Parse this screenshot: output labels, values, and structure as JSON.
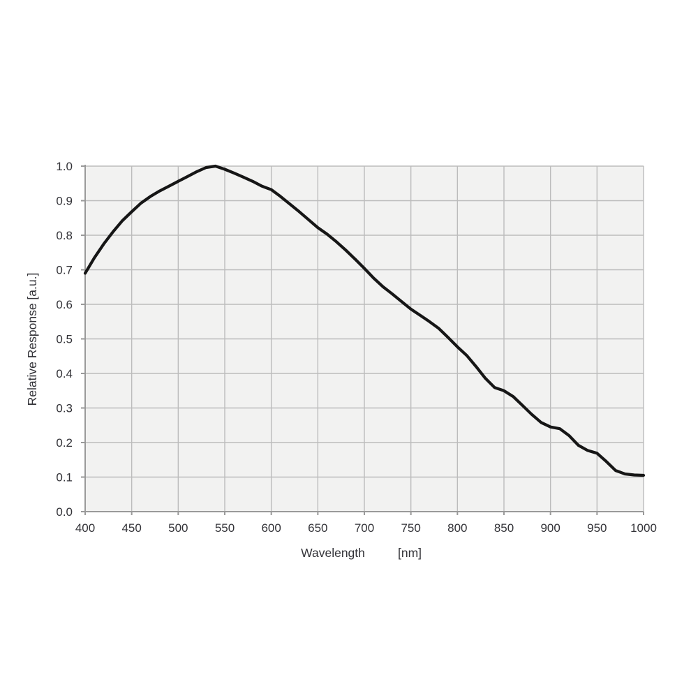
{
  "figure": {
    "background": "#ffffff",
    "title": ""
  },
  "chart_data": {
    "type": "line",
    "title": "",
    "xlabel": "Wavelength",
    "xlabel_unit": "[nm]",
    "ylabel": "Relative Response [a.u.]",
    "x_range": [
      400,
      1000
    ],
    "y_range": [
      0.0,
      1.0
    ],
    "grid": true,
    "legend": "none",
    "x_ticks": [
      400,
      450,
      500,
      550,
      600,
      650,
      700,
      750,
      800,
      850,
      900,
      950,
      1000
    ],
    "x_tick_labels": [
      "400",
      "450",
      "500",
      "550",
      "600",
      "650",
      "700",
      "750",
      "800",
      "850",
      "900",
      "950",
      "1000"
    ],
    "y_ticks": [
      0.0,
      0.1,
      0.2,
      0.3,
      0.4,
      0.5,
      0.6,
      0.7,
      0.8,
      0.9,
      1.0
    ],
    "y_tick_labels": [
      "0.0",
      "0.1",
      "0.2",
      "0.3",
      "0.4",
      "0.5",
      "0.6",
      "0.7",
      "0.8",
      "0.9",
      "1.0"
    ],
    "series": [
      {
        "name": "Relative response",
        "x": [
          400,
          410,
          420,
          430,
          440,
          450,
          460,
          470,
          480,
          490,
          500,
          510,
          520,
          530,
          540,
          550,
          560,
          570,
          580,
          590,
          600,
          610,
          620,
          630,
          640,
          650,
          660,
          670,
          680,
          690,
          700,
          710,
          720,
          730,
          740,
          750,
          760,
          770,
          780,
          790,
          800,
          810,
          820,
          830,
          840,
          850,
          860,
          870,
          880,
          890,
          900,
          910,
          920,
          930,
          940,
          950,
          960,
          970,
          980,
          990,
          1000
        ],
        "y": [
          0.69,
          0.735,
          0.775,
          0.81,
          0.842,
          0.868,
          0.893,
          0.912,
          0.928,
          0.942,
          0.956,
          0.97,
          0.984,
          0.996,
          1.0,
          0.991,
          0.98,
          0.968,
          0.956,
          0.942,
          0.932,
          0.912,
          0.89,
          0.868,
          0.845,
          0.822,
          0.803,
          0.781,
          0.757,
          0.731,
          0.704,
          0.676,
          0.651,
          0.63,
          0.608,
          0.586,
          0.568,
          0.55,
          0.53,
          0.504,
          0.477,
          0.452,
          0.42,
          0.386,
          0.359,
          0.35,
          0.333,
          0.307,
          0.281,
          0.258,
          0.245,
          0.24,
          0.22,
          0.192,
          0.177,
          0.169,
          0.145,
          0.119,
          0.109,
          0.106,
          0.105
        ]
      }
    ],
    "colors": {
      "curve": "#161616",
      "grid": "#bcbcbc",
      "axis": "#9a9a9a",
      "plot_background": "#f2f2f1",
      "text": "#333338"
    }
  }
}
